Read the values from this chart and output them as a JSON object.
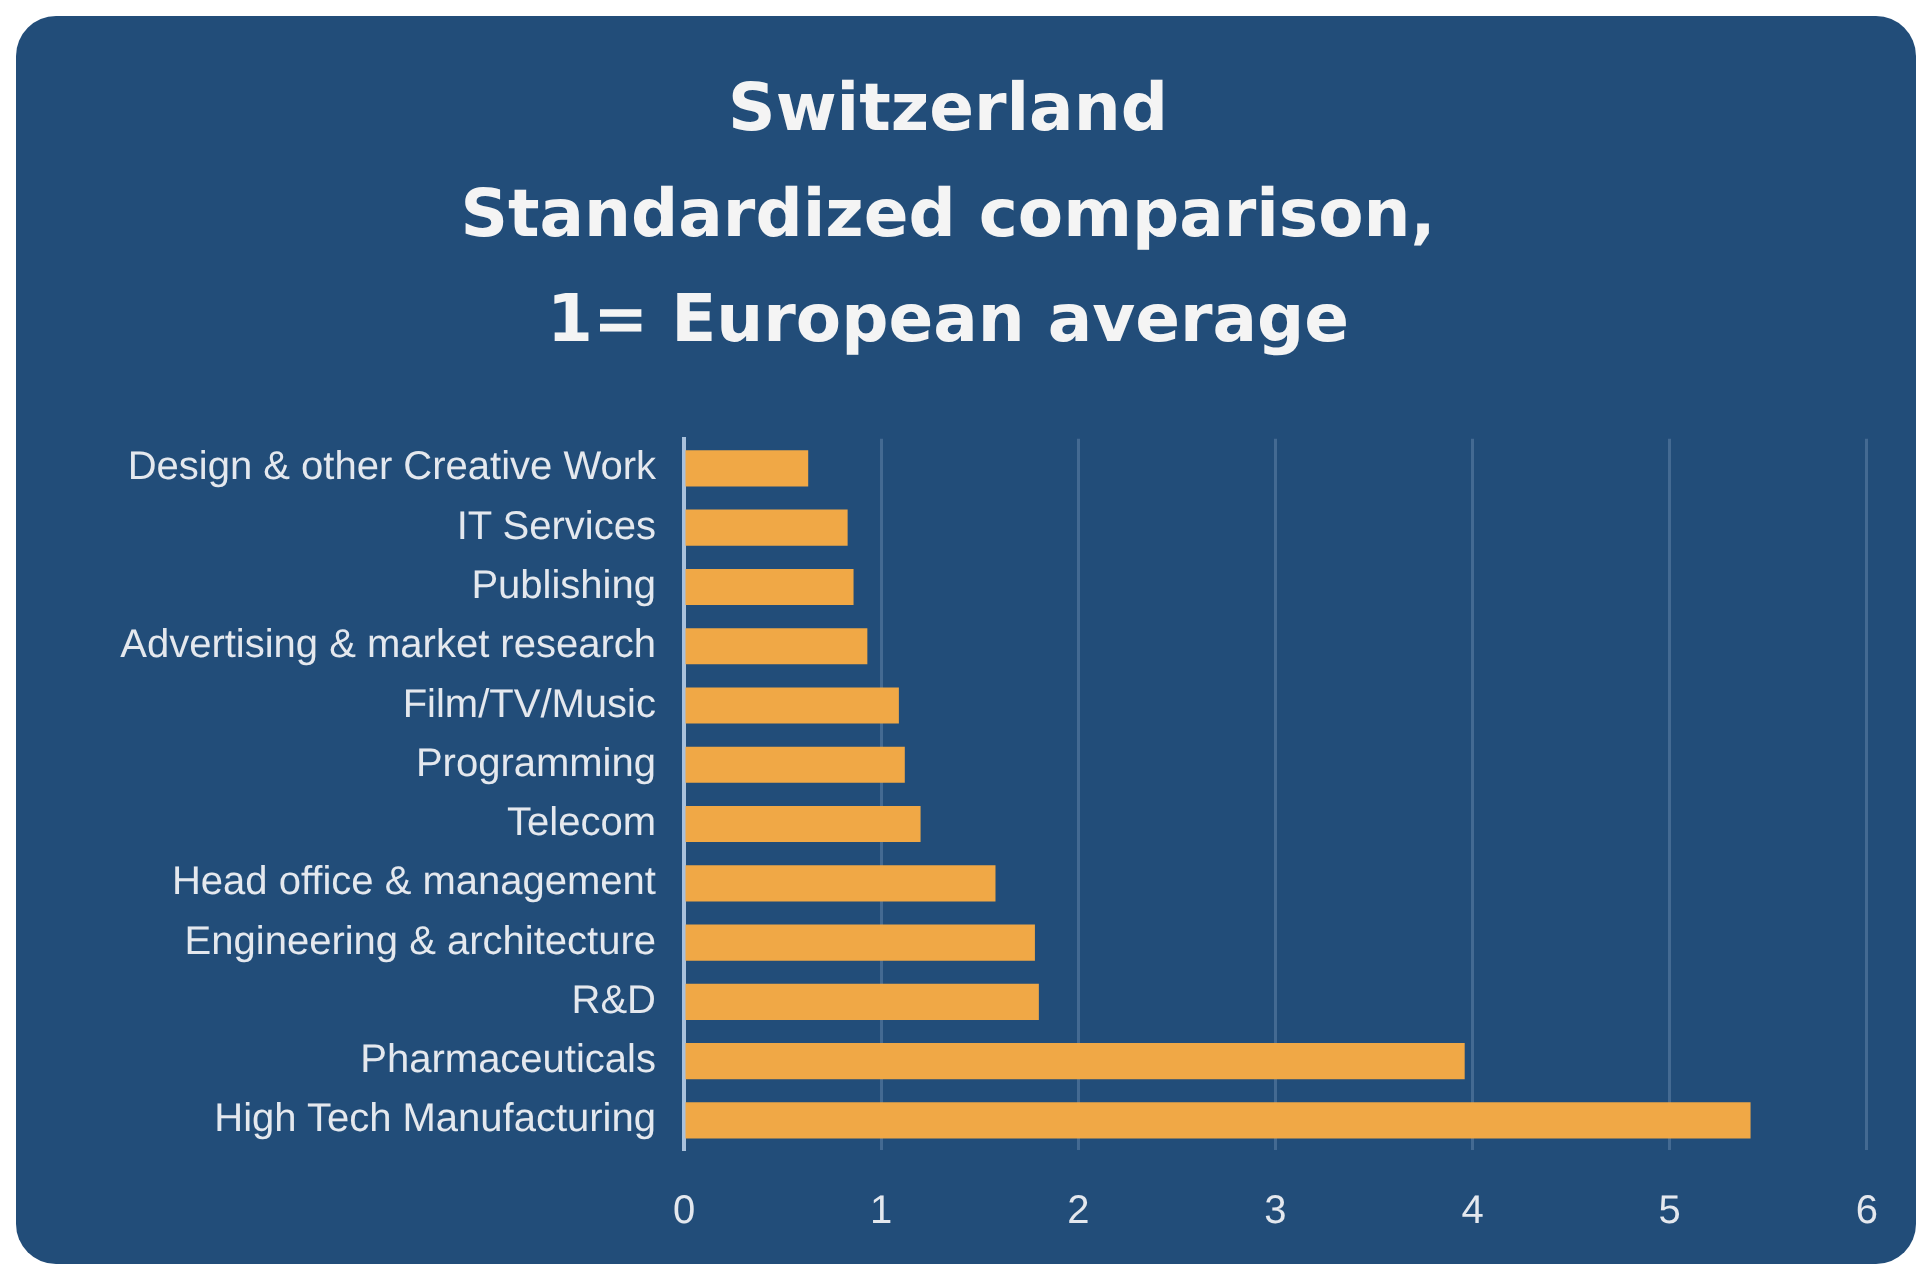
{
  "chart_data": {
    "type": "bar",
    "orientation": "horizontal",
    "title": "Switzerland\nStandardized comparison,\n1= European average",
    "categories": [
      "Design & other Creative Work",
      "IT Services",
      "Publishing",
      "Advertising & market research",
      "Film/TV/Music",
      "Programming",
      "Telecom",
      "Head office & management",
      "Engineering & architecture",
      "R&D",
      "Pharmaceuticals",
      "High Tech Manufacturing"
    ],
    "values": [
      0.63,
      0.83,
      0.86,
      0.93,
      1.09,
      1.12,
      1.2,
      1.58,
      1.78,
      1.8,
      3.96,
      5.41
    ],
    "color": "#f0a846",
    "xlim": [
      0,
      6
    ],
    "xticks": [
      0,
      1,
      2,
      3,
      4,
      5,
      6
    ],
    "grid": "x",
    "legend": false
  }
}
